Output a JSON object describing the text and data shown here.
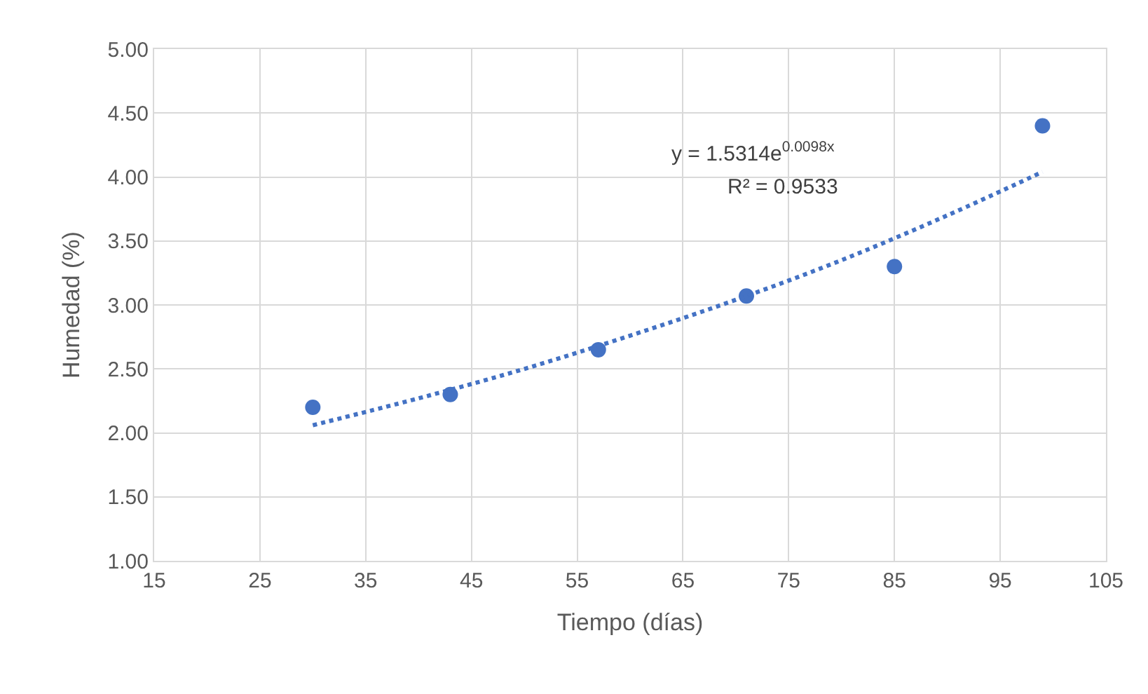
{
  "chart_data": {
    "type": "scatter",
    "xlabel": "Tiempo (días)",
    "ylabel": "Humedad (%)",
    "xlim": [
      15,
      105
    ],
    "xticks": [
      15,
      25,
      35,
      45,
      55,
      65,
      75,
      85,
      95,
      105
    ],
    "ylim": [
      1.0,
      5.0
    ],
    "yticks": [
      {
        "value": 1.0,
        "label": "1.00"
      },
      {
        "value": 1.5,
        "label": "1.50"
      },
      {
        "value": 2.0,
        "label": "2.00"
      },
      {
        "value": 2.5,
        "label": "2.50"
      },
      {
        "value": 3.0,
        "label": "3.00"
      },
      {
        "value": 3.5,
        "label": "3.50"
      },
      {
        "value": 4.0,
        "label": "4.00"
      },
      {
        "value": 4.5,
        "label": "4.50"
      },
      {
        "value": 5.0,
        "label": "5.00"
      }
    ],
    "grid": true,
    "series": [
      {
        "color": "#4472c4",
        "marker": "circle",
        "x": [
          30,
          43,
          57,
          71,
          85,
          99
        ],
        "values": [
          2.2,
          2.3,
          2.65,
          3.07,
          3.3,
          4.4
        ]
      },
      {
        "type": "line",
        "color": "#4472c4",
        "line_style": "dotted",
        "x": [
          30,
          40,
          50,
          60,
          70,
          80,
          90,
          99
        ],
        "values": [
          2.06,
          2.27,
          2.5,
          2.76,
          3.04,
          3.35,
          3.7,
          4.04
        ]
      }
    ],
    "annotations": [
      "y = 1.5314e$^{0.0098x}$",
      "R² = 0.9533"
    ]
  }
}
